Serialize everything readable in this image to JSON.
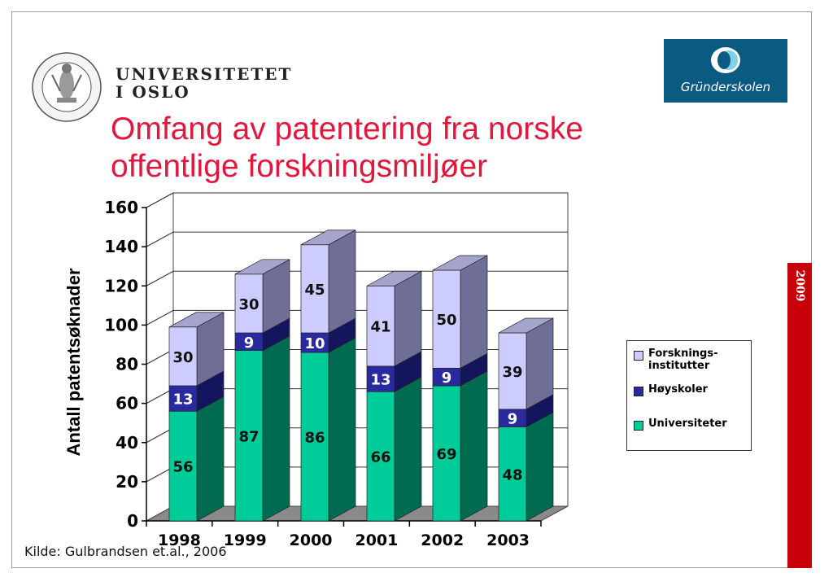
{
  "header": {
    "university_line1": "UNIVERSITETET",
    "university_line2": "I OSLO",
    "seal_text": "UNIVERSITAS OSLOENSIS MDCCCXI",
    "logo_text": "Gründerskolen"
  },
  "title": {
    "line1": "Omfang av patentering fra norske",
    "line2": "offentlige forskningsmiljøer"
  },
  "side_year": "2009",
  "source": "Kilde: Gulbrandsen et.al., 2006",
  "colors": {
    "title": "#e3173e",
    "logo_bg": "#0a5a82",
    "strip": "#c8000a",
    "universiteter": "#00cc99",
    "hoyskoler": "#2a2aa0",
    "forskningsinstitutter": "#ccccff"
  },
  "legend": {
    "forsk_line1": "Forsknings-",
    "forsk_line2": "institutter",
    "hoyskoler": "Høyskoler",
    "universiteter": "Universiteter"
  },
  "chart_data": {
    "type": "bar",
    "stacked": true,
    "three_d": true,
    "categories": [
      "1998",
      "1999",
      "2000",
      "2001",
      "2002",
      "2003"
    ],
    "series": [
      {
        "name": "Universiteter",
        "values": [
          56,
          87,
          86,
          66,
          69,
          48
        ]
      },
      {
        "name": "Høyskoler",
        "values": [
          13,
          9,
          10,
          13,
          9,
          9
        ]
      },
      {
        "name": "Forsknings-institutter",
        "values": [
          30,
          30,
          45,
          41,
          50,
          39
        ]
      }
    ],
    "ylabel": "Antall patentsøknader",
    "xlabel": "",
    "ylim": [
      0,
      160
    ],
    "yticks": [
      0,
      20,
      40,
      60,
      80,
      100,
      120,
      140,
      160
    ],
    "grid": true,
    "legend_position": "right"
  }
}
